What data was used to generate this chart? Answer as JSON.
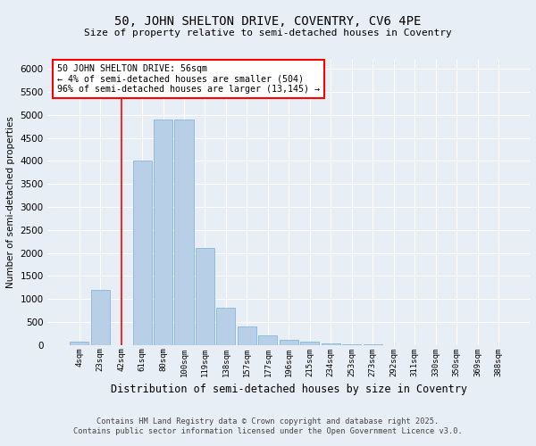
{
  "title_line1": "50, JOHN SHELTON DRIVE, COVENTRY, CV6 4PE",
  "title_line2": "Size of property relative to semi-detached houses in Coventry",
  "xlabel": "Distribution of semi-detached houses by size in Coventry",
  "ylabel": "Number of semi-detached properties",
  "categories": [
    "4sqm",
    "23sqm",
    "42sqm",
    "61sqm",
    "80sqm",
    "100sqm",
    "119sqm",
    "138sqm",
    "157sqm",
    "177sqm",
    "196sqm",
    "215sqm",
    "234sqm",
    "253sqm",
    "273sqm",
    "292sqm",
    "311sqm",
    "330sqm",
    "350sqm",
    "369sqm",
    "388sqm"
  ],
  "values": [
    80,
    1200,
    0,
    4000,
    4900,
    4900,
    2100,
    800,
    400,
    200,
    120,
    80,
    30,
    10,
    5,
    2,
    1,
    1,
    0,
    0,
    0
  ],
  "bar_color": "#b8cfe8",
  "bar_edge_color": "#7aaed4",
  "vline_x": 2.0,
  "vline_color": "red",
  "annotation_title": "50 JOHN SHELTON DRIVE: 56sqm",
  "annotation_line2": "← 4% of semi-detached houses are smaller (504)",
  "annotation_line3": "96% of semi-detached houses are larger (13,145) →",
  "ylim": [
    0,
    6200
  ],
  "yticks": [
    0,
    500,
    1000,
    1500,
    2000,
    2500,
    3000,
    3500,
    4000,
    4500,
    5000,
    5500,
    6000
  ],
  "footer_line1": "Contains HM Land Registry data © Crown copyright and database right 2025.",
  "footer_line2": "Contains public sector information licensed under the Open Government Licence v3.0.",
  "background_color": "#e8eef5",
  "grid_color": "white"
}
